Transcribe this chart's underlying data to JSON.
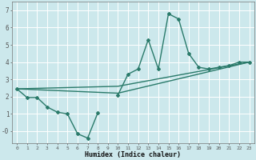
{
  "xlabel": "Humidex (Indice chaleur)",
  "bg_color": "#cce8ec",
  "grid_color": "#ffffff",
  "line_color": "#2a7a6a",
  "xlim": [
    -0.5,
    23.5
  ],
  "ylim": [
    -0.7,
    7.5
  ],
  "xticks": [
    0,
    1,
    2,
    3,
    4,
    5,
    6,
    7,
    8,
    9,
    10,
    11,
    12,
    13,
    14,
    15,
    16,
    17,
    18,
    19,
    20,
    21,
    22,
    23
  ],
  "yticks": [
    0,
    1,
    2,
    3,
    4,
    5,
    6,
    7
  ],
  "ytick_labels": [
    "-0",
    "1",
    "2",
    "3",
    "4",
    "5",
    "6",
    "7"
  ],
  "line1_x": [
    0,
    1,
    2,
    3,
    4,
    5,
    6,
    7,
    8,
    9,
    10,
    11,
    12,
    13,
    14,
    15,
    16,
    17,
    18,
    19,
    20,
    21,
    22,
    23
  ],
  "line1_y": [
    2.45,
    1.95,
    1.95,
    1.4,
    1.1,
    1.0,
    -0.15,
    -0.4,
    1.05,
    null,
    2.1,
    3.3,
    3.6,
    5.3,
    3.6,
    6.8,
    6.5,
    4.5,
    3.7,
    3.6,
    3.7,
    3.8,
    4.0,
    4.0
  ],
  "line2_x": [
    0,
    10,
    23
  ],
  "line2_y": [
    2.45,
    2.6,
    4.0
  ],
  "line3_x": [
    0,
    10,
    23
  ],
  "line3_y": [
    2.45,
    2.2,
    4.0
  ]
}
